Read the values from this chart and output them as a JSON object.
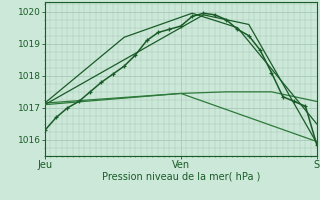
{
  "bg_color": "#cce8d8",
  "plot_bg_color": "#cce8d8",
  "grid_color": "#a8c8b8",
  "xlim": [
    0,
    48
  ],
  "ylim": [
    1015.5,
    1020.3
  ],
  "yticks": [
    1016,
    1017,
    1018,
    1019,
    1020
  ],
  "xlabel": "Pression niveau de la mer( hPa )",
  "xtick_labels": [
    "Jeu",
    "Ven",
    "S"
  ],
  "xtick_positions": [
    0,
    24,
    48
  ],
  "series": [
    {
      "x": [
        0,
        2,
        4,
        6,
        8,
        10,
        12,
        14,
        16,
        18,
        20,
        22,
        24,
        26,
        28,
        30,
        32,
        34,
        36,
        38,
        40,
        42,
        44,
        46,
        48
      ],
      "y": [
        1016.3,
        1016.7,
        1017.0,
        1017.2,
        1017.5,
        1017.8,
        1018.05,
        1018.3,
        1018.65,
        1019.1,
        1019.35,
        1019.45,
        1019.55,
        1019.85,
        1019.95,
        1019.9,
        1019.75,
        1019.45,
        1019.25,
        1018.8,
        1018.1,
        1017.35,
        1017.2,
        1017.05,
        1015.85
      ],
      "color": "#1a5c28",
      "lw": 1.1,
      "marker": "+"
    },
    {
      "x": [
        0,
        8,
        16,
        24,
        32,
        40,
        48
      ],
      "y": [
        1017.15,
        1017.25,
        1017.35,
        1017.45,
        1017.5,
        1017.5,
        1017.2
      ],
      "color": "#2d7a3a",
      "lw": 0.9
    },
    {
      "x": [
        0,
        16,
        28,
        36,
        48
      ],
      "y": [
        1017.1,
        1018.7,
        1019.9,
        1019.6,
        1015.9
      ],
      "color": "#1a5c28",
      "lw": 0.9
    },
    {
      "x": [
        0,
        14,
        26,
        34,
        48
      ],
      "y": [
        1017.15,
        1019.2,
        1019.95,
        1019.5,
        1016.5
      ],
      "color": "#1a5c28",
      "lw": 0.9
    },
    {
      "x": [
        0,
        24,
        48
      ],
      "y": [
        1017.1,
        1017.45,
        1015.95
      ],
      "color": "#2d7a3a",
      "lw": 0.9
    }
  ]
}
